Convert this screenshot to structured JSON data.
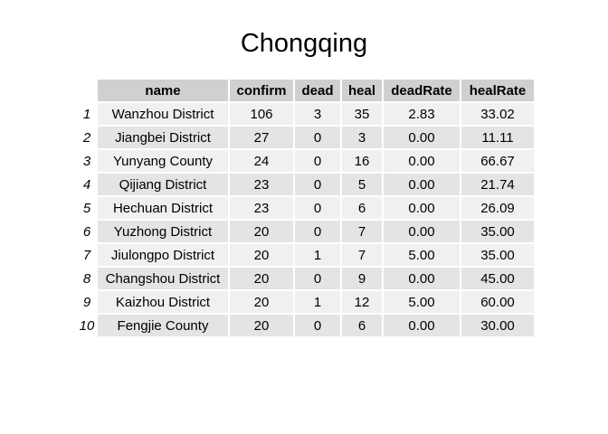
{
  "chart_data": {
    "type": "table",
    "title": "Chongqing",
    "columns": [
      "name",
      "confirm",
      "dead",
      "heal",
      "deadRate",
      "healRate"
    ],
    "row_labels": [
      "1",
      "2",
      "3",
      "4",
      "5",
      "6",
      "7",
      "8",
      "9",
      "10"
    ],
    "rows": [
      [
        "Wanzhou District",
        "106",
        "3",
        "35",
        "2.83",
        "33.02"
      ],
      [
        "Jiangbei District",
        "27",
        "0",
        "3",
        "0.00",
        "11.11"
      ],
      [
        "Yunyang County",
        "24",
        "0",
        "16",
        "0.00",
        "66.67"
      ],
      [
        "Qijiang District",
        "23",
        "0",
        "5",
        "0.00",
        "21.74"
      ],
      [
        "Hechuan District",
        "23",
        "0",
        "6",
        "0.00",
        "26.09"
      ],
      [
        "Yuzhong District",
        "20",
        "0",
        "7",
        "0.00",
        "35.00"
      ],
      [
        "Jiulongpo District",
        "20",
        "1",
        "7",
        "5.00",
        "35.00"
      ],
      [
        "Changshou District",
        "20",
        "0",
        "9",
        "0.00",
        "45.00"
      ],
      [
        "Kaizhou District",
        "20",
        "1",
        "12",
        "5.00",
        "60.00"
      ],
      [
        "Fengjie County",
        "20",
        "0",
        "6",
        "0.00",
        "30.00"
      ]
    ]
  }
}
